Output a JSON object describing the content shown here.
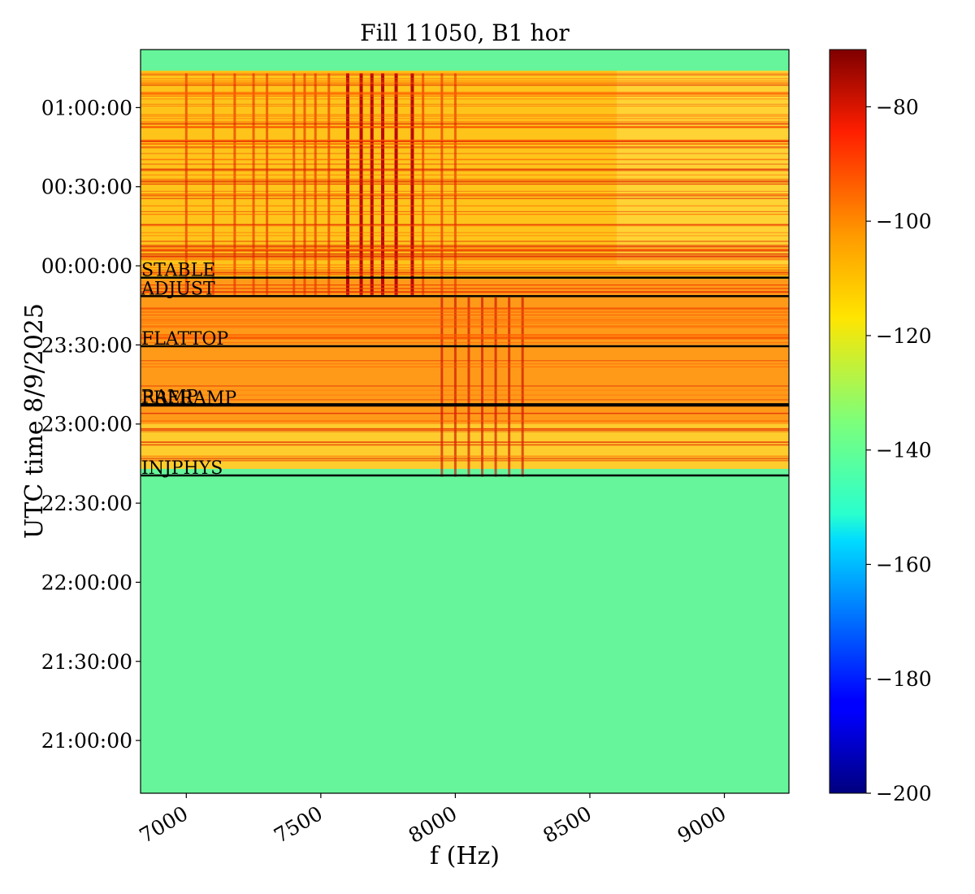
{
  "chart_data": {
    "type": "heatmap",
    "title": "Fill 11050, B1 hor",
    "xlabel": "f (Hz)",
    "ylabel": "UTC time 8/9/2025",
    "xlim": [
      6830,
      9240
    ],
    "x_ticks": [
      7000,
      7500,
      8000,
      8500,
      9000
    ],
    "y_ticks": [
      "01:00:00",
      "00:30:00",
      "00:00:00",
      "23:30:00",
      "23:00:00",
      "22:30:00",
      "22:00:00",
      "21:30:00",
      "21:00:00"
    ],
    "y_tick_minutes_after_2100": [
      120,
      90,
      60,
      30,
      0,
      -30,
      -60,
      -90,
      -120
    ],
    "ylim_minutes_after_2100": [
      -140,
      142
    ],
    "colorbar": {
      "colormap": "jet",
      "range": [
        -200,
        -70
      ],
      "ticks": [
        -80,
        -100,
        -120,
        -140,
        -160,
        -180,
        -200
      ]
    },
    "beam_modes": [
      {
        "label": "STABLE",
        "minutes_after_2100": 55.5
      },
      {
        "label": "ADJUST",
        "minutes_after_2100": 48.5
      },
      {
        "label": "FLATTOP",
        "minutes_after_2100": 29.5
      },
      {
        "label": "RAMP",
        "minutes_after_2100": 7.5
      },
      {
        "label": "PRERAMP",
        "minutes_after_2100": 7.0
      },
      {
        "label": "INJPHYS",
        "minutes_after_2100": -19.5
      }
    ],
    "tune_lines_stable_hz": [
      7000,
      7100,
      7180,
      7250,
      7300,
      7400,
      7440,
      7480,
      7530,
      7600,
      7650,
      7690,
      7730,
      7780,
      7840,
      7880,
      7950,
      8000
    ],
    "tune_lines_injection_hz": [
      7950,
      8000,
      8050,
      8100,
      8150,
      8200,
      8250
    ]
  }
}
